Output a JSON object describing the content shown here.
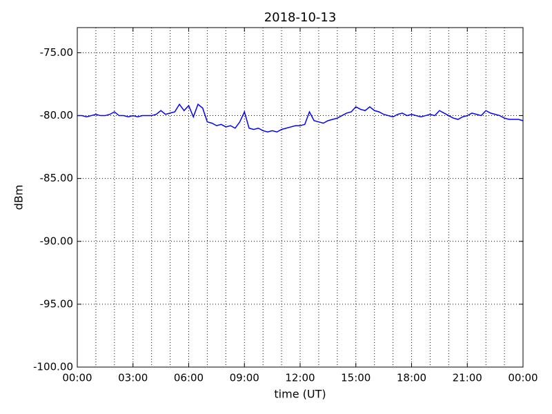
{
  "chart_data": {
    "type": "line",
    "title": "2018-10-13",
    "x_label": "time (UT)",
    "y_label": "dBm",
    "x": [
      0,
      0.25,
      0.5,
      0.75,
      1,
      1.25,
      1.5,
      1.75,
      2,
      2.25,
      2.5,
      2.75,
      3,
      3.25,
      3.5,
      3.75,
      4,
      4.25,
      4.5,
      4.75,
      5,
      5.25,
      5.5,
      5.75,
      6,
      6.25,
      6.5,
      6.75,
      7,
      7.25,
      7.5,
      7.75,
      8,
      8.25,
      8.5,
      8.75,
      9,
      9.25,
      9.5,
      9.75,
      10,
      10.25,
      10.5,
      10.75,
      11,
      11.25,
      11.5,
      11.75,
      12,
      12.25,
      12.5,
      12.75,
      13,
      13.25,
      13.5,
      13.75,
      14,
      14.25,
      14.5,
      14.75,
      15,
      15.25,
      15.5,
      15.75,
      16,
      16.25,
      16.5,
      16.75,
      17,
      17.25,
      17.5,
      17.75,
      18,
      18.25,
      18.5,
      18.75,
      19,
      19.25,
      19.5,
      19.75,
      20,
      20.25,
      20.5,
      20.75,
      21,
      21.25,
      21.5,
      21.75,
      22,
      22.25,
      22.5,
      22.75,
      23,
      23.25,
      23.5,
      23.75,
      24
    ],
    "series": [
      {
        "color": "#0000ff",
        "values": [
          -80.0,
          -80.0,
          -80.1,
          -80.0,
          -79.9,
          -80.0,
          -80.0,
          -79.9,
          -79.7,
          -80.0,
          -80.0,
          -80.1,
          -80.0,
          -80.1,
          -80.0,
          -80.0,
          -80.0,
          -79.9,
          -79.6,
          -79.9,
          -79.8,
          -79.7,
          -79.1,
          -79.6,
          -79.2,
          -80.1,
          -79.1,
          -79.4,
          -80.5,
          -80.6,
          -80.8,
          -80.7,
          -80.9,
          -80.8,
          -81.0,
          -80.5,
          -79.7,
          -81.0,
          -81.1,
          -81.0,
          -81.2,
          -81.3,
          -81.2,
          -81.3,
          -81.1,
          -81.0,
          -80.9,
          -80.8,
          -80.8,
          -80.7,
          -79.7,
          -80.4,
          -80.5,
          -80.6,
          -80.4,
          -80.3,
          -80.2,
          -80.0,
          -79.8,
          -79.7,
          -79.3,
          -79.5,
          -79.6,
          -79.3,
          -79.6,
          -79.7,
          -79.9,
          -80.0,
          -80.1,
          -79.9,
          -79.8,
          -80.0,
          -79.9,
          -80.0,
          -80.1,
          -80.0,
          -79.9,
          -80.0,
          -79.6,
          -79.8,
          -80.0,
          -80.2,
          -80.3,
          -80.1,
          -80.0,
          -79.8,
          -79.9,
          -80.0,
          -79.6,
          -79.8,
          -79.9,
          -80.0,
          -80.2,
          -80.3,
          -80.3,
          -80.3,
          -80.4
        ]
      }
    ],
    "xlim": [
      0,
      24
    ],
    "xticks": [
      {
        "value": 0,
        "label": "00:00"
      },
      {
        "value": 3,
        "label": "03:00"
      },
      {
        "value": 6,
        "label": "06:00"
      },
      {
        "value": 9,
        "label": "09:00"
      },
      {
        "value": 12,
        "label": "12:00"
      },
      {
        "value": 15,
        "label": "15:00"
      },
      {
        "value": 18,
        "label": "18:00"
      },
      {
        "value": 21,
        "label": "21:00"
      },
      {
        "value": 24,
        "label": "00:00"
      }
    ],
    "xminorticks": [
      1,
      2,
      4,
      5,
      7,
      8,
      10,
      11,
      13,
      14,
      16,
      17,
      19,
      20,
      22,
      23
    ],
    "ylim": [
      -100,
      -73
    ],
    "yticks": [
      {
        "value": -100,
        "label": "-100.00"
      },
      {
        "value": -95,
        "label": "-95.00"
      },
      {
        "value": -90,
        "label": "-90.00"
      },
      {
        "value": -85,
        "label": "-85.00"
      },
      {
        "value": -80,
        "label": "-80.00"
      },
      {
        "value": -75,
        "label": "-75.00"
      }
    ],
    "grid": true
  }
}
